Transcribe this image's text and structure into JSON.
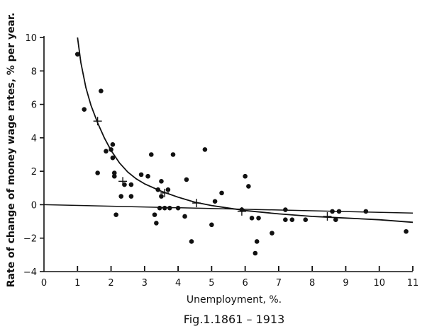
{
  "chart_data": {
    "type": "scatter",
    "title": "",
    "caption": "Fig.1.1861 – 1913",
    "xlabel": "Unemployment,   %.",
    "ylabel": "Rate of change of money wage rates, % per year.",
    "xlim": [
      0,
      11
    ],
    "ylim": [
      -4,
      10
    ],
    "x_ticks": [
      0,
      1,
      2,
      3,
      4,
      5,
      6,
      7,
      8,
      9,
      10,
      11
    ],
    "y_ticks": [
      -4,
      -2,
      0,
      2,
      4,
      6,
      8,
      10
    ],
    "grid": false,
    "points": [
      {
        "x": 1.0,
        "y": 9.0
      },
      {
        "x": 1.2,
        "y": 5.7
      },
      {
        "x": 1.6,
        "y": 1.9
      },
      {
        "x": 1.7,
        "y": 6.8
      },
      {
        "x": 1.85,
        "y": 3.2
      },
      {
        "x": 2.0,
        "y": 3.3
      },
      {
        "x": 2.05,
        "y": 3.6
      },
      {
        "x": 2.05,
        "y": 2.8
      },
      {
        "x": 2.1,
        "y": 1.9
      },
      {
        "x": 2.1,
        "y": 1.7
      },
      {
        "x": 2.15,
        "y": -0.6
      },
      {
        "x": 2.3,
        "y": 0.5
      },
      {
        "x": 2.4,
        "y": 1.2
      },
      {
        "x": 2.6,
        "y": 1.2
      },
      {
        "x": 2.6,
        "y": 0.5
      },
      {
        "x": 2.9,
        "y": 1.8
      },
      {
        "x": 3.1,
        "y": 1.7
      },
      {
        "x": 3.2,
        "y": 3.0
      },
      {
        "x": 3.3,
        "y": -0.6
      },
      {
        "x": 3.35,
        "y": -1.1
      },
      {
        "x": 3.4,
        "y": 0.9
      },
      {
        "x": 3.45,
        "y": -0.2
      },
      {
        "x": 3.5,
        "y": 1.4
      },
      {
        "x": 3.5,
        "y": 0.5
      },
      {
        "x": 3.6,
        "y": -0.2
      },
      {
        "x": 3.7,
        "y": 0.9
      },
      {
        "x": 3.75,
        "y": -0.2
      },
      {
        "x": 3.85,
        "y": 3.0
      },
      {
        "x": 4.0,
        "y": -0.2
      },
      {
        "x": 4.2,
        "y": -0.7
      },
      {
        "x": 4.25,
        "y": 1.5
      },
      {
        "x": 4.4,
        "y": -2.2
      },
      {
        "x": 4.8,
        "y": 3.3
      },
      {
        "x": 5.0,
        "y": -1.2
      },
      {
        "x": 5.1,
        "y": 0.2
      },
      {
        "x": 5.3,
        "y": 0.7
      },
      {
        "x": 5.9,
        "y": -0.3
      },
      {
        "x": 6.0,
        "y": 1.7
      },
      {
        "x": 6.1,
        "y": 1.1
      },
      {
        "x": 6.2,
        "y": -0.8
      },
      {
        "x": 6.3,
        "y": -2.9
      },
      {
        "x": 6.35,
        "y": -2.2
      },
      {
        "x": 6.4,
        "y": -0.8
      },
      {
        "x": 6.8,
        "y": -1.7
      },
      {
        "x": 7.2,
        "y": -0.3
      },
      {
        "x": 7.2,
        "y": -0.9
      },
      {
        "x": 7.4,
        "y": -0.9
      },
      {
        "x": 7.8,
        "y": -0.9
      },
      {
        "x": 8.6,
        "y": -0.4
      },
      {
        "x": 8.7,
        "y": -0.9
      },
      {
        "x": 8.8,
        "y": -0.4
      },
      {
        "x": 9.6,
        "y": -0.4
      },
      {
        "x": 10.8,
        "y": -1.6
      }
    ],
    "crosses": [
      {
        "x": 1.6,
        "y": 5.0
      },
      {
        "x": 2.35,
        "y": 1.4
      },
      {
        "x": 3.6,
        "y": 0.7
      },
      {
        "x": 4.55,
        "y": 0.1
      },
      {
        "x": 5.9,
        "y": -0.4
      },
      {
        "x": 8.45,
        "y": -0.7
      }
    ],
    "curve": [
      {
        "x": 1.0,
        "y": 10.0
      },
      {
        "x": 1.1,
        "y": 8.5
      },
      {
        "x": 1.25,
        "y": 7.0
      },
      {
        "x": 1.4,
        "y": 5.95
      },
      {
        "x": 1.6,
        "y": 4.9
      },
      {
        "x": 1.8,
        "y": 4.0
      },
      {
        "x": 2.0,
        "y": 3.25
      },
      {
        "x": 2.25,
        "y": 2.5
      },
      {
        "x": 2.5,
        "y": 1.95
      },
      {
        "x": 2.75,
        "y": 1.55
      },
      {
        "x": 3.0,
        "y": 1.25
      },
      {
        "x": 3.5,
        "y": 0.8
      },
      {
        "x": 4.0,
        "y": 0.45
      },
      {
        "x": 4.5,
        "y": 0.15
      },
      {
        "x": 5.0,
        "y": -0.05
      },
      {
        "x": 5.5,
        "y": -0.2
      },
      {
        "x": 6.0,
        "y": -0.35
      },
      {
        "x": 7.0,
        "y": -0.55
      },
      {
        "x": 8.0,
        "y": -0.7
      },
      {
        "x": 9.0,
        "y": -0.8
      },
      {
        "x": 10.0,
        "y": -0.9
      },
      {
        "x": 11.0,
        "y": -1.05
      }
    ],
    "trend_line": [
      {
        "x": 0.0,
        "y": 0.0
      },
      {
        "x": 11.0,
        "y": -0.5
      }
    ],
    "colors": {
      "ink": "#111111",
      "background": "#ffffff"
    }
  }
}
